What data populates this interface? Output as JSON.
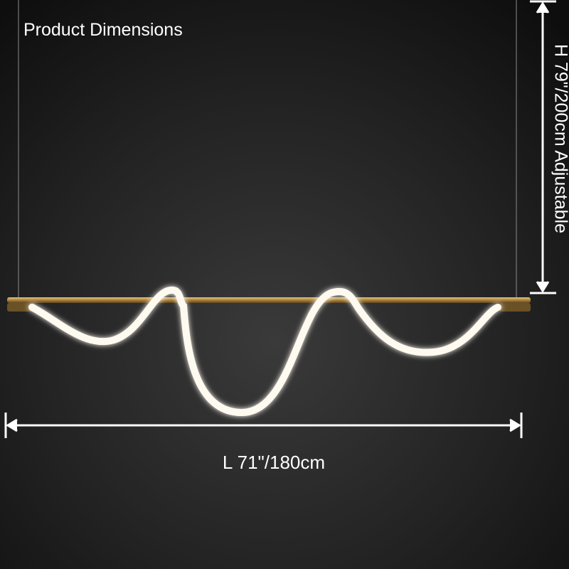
{
  "header": {
    "title": "Product Dimensions"
  },
  "dimensions": {
    "height": "H 79\"/200cm Adjustable",
    "length": "L 71\"/180cm"
  }
}
